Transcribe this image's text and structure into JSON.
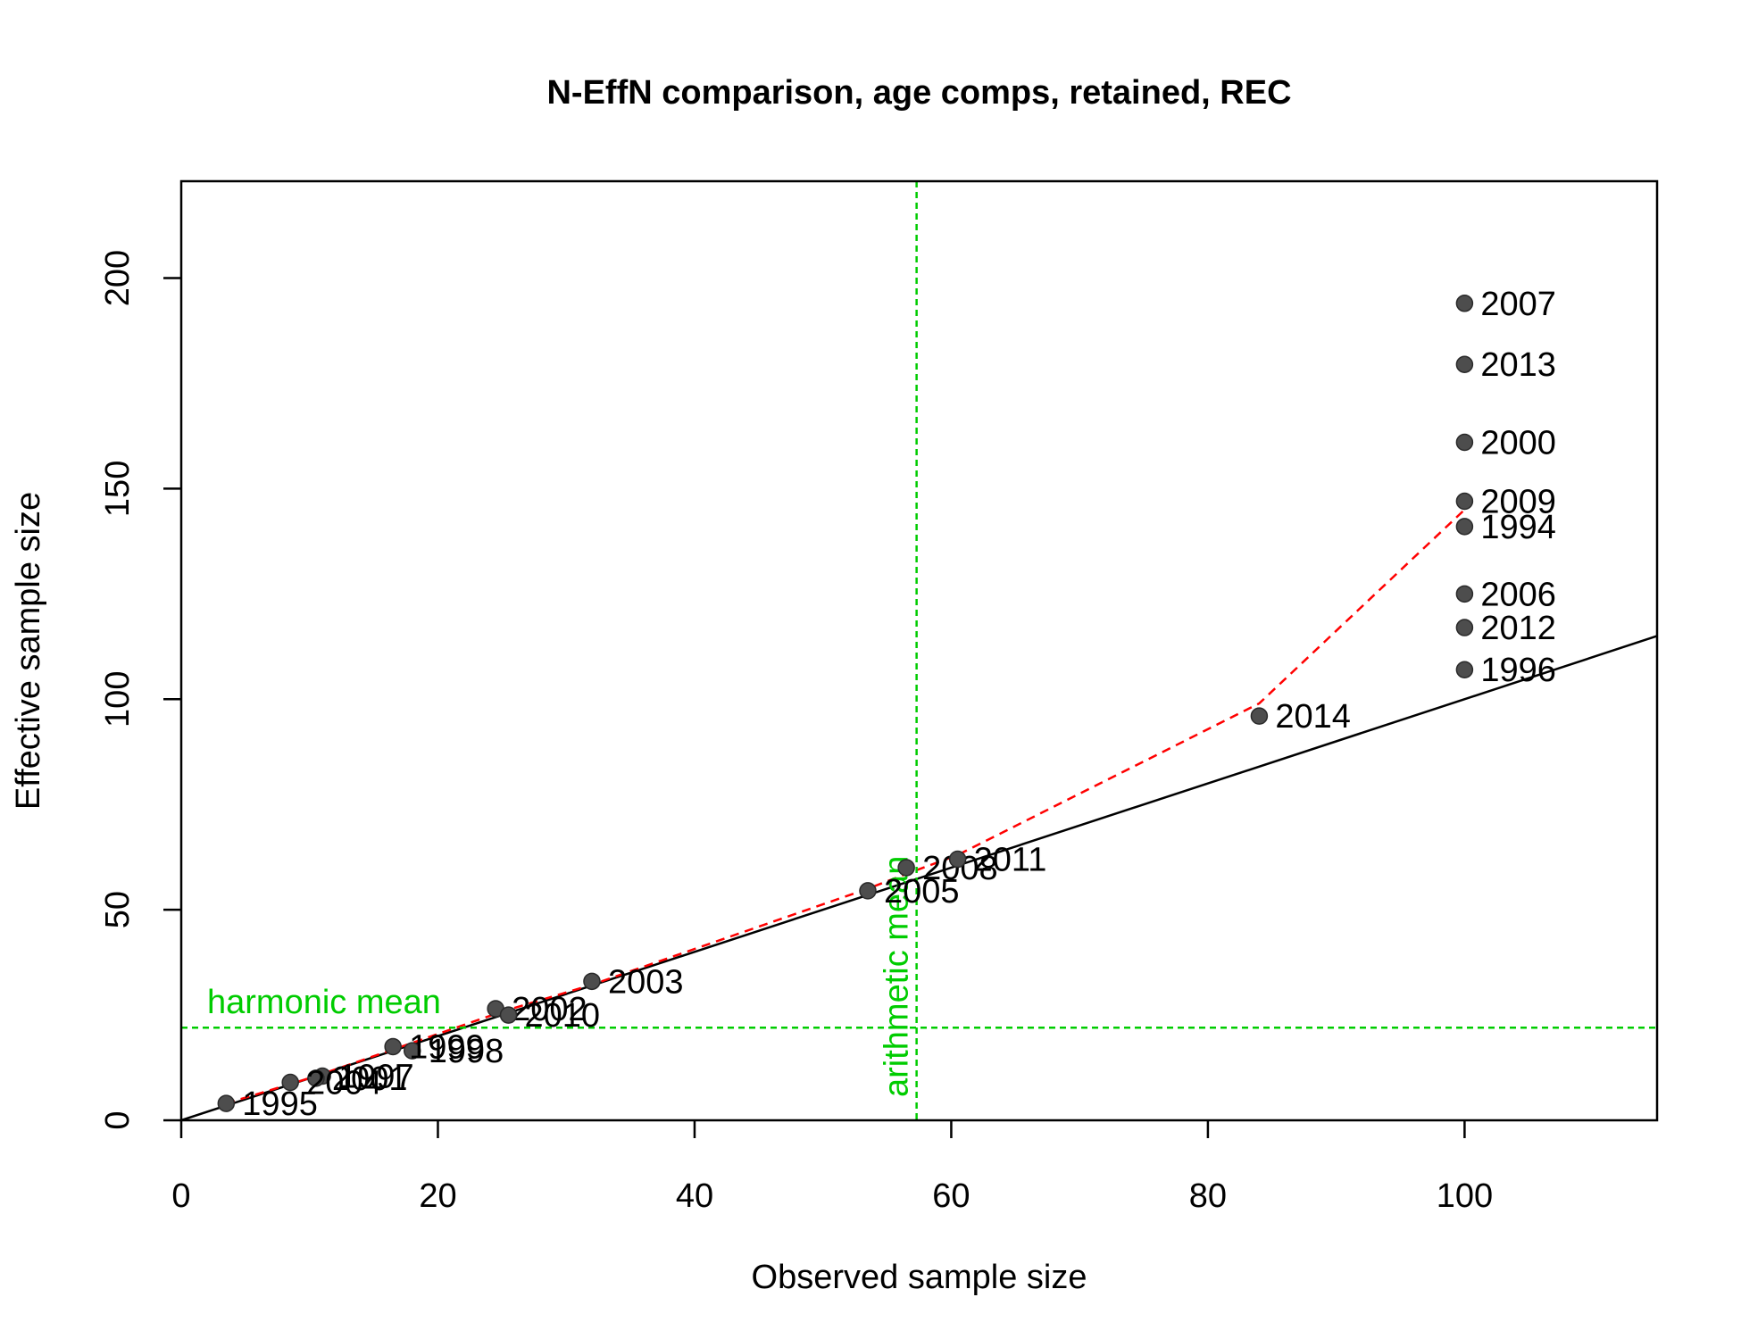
{
  "chart_data": {
    "type": "scatter",
    "title": "N-EffN comparison, age comps, retained, REC",
    "xlabel": "Observed sample size",
    "ylabel": "Effective sample size",
    "xlim": [
      0,
      115
    ],
    "ylim": [
      0,
      223
    ],
    "x_ticks": [
      0,
      20,
      40,
      60,
      80,
      100
    ],
    "y_ticks": [
      0,
      50,
      100,
      150,
      200
    ],
    "grid": false,
    "points": [
      {
        "label": "1994",
        "x": 100,
        "y": 141
      },
      {
        "label": "1995",
        "x": 3.5,
        "y": 4
      },
      {
        "label": "1996",
        "x": 100,
        "y": 107
      },
      {
        "label": "1997",
        "x": 11,
        "y": 10.5
      },
      {
        "label": "1998",
        "x": 18,
        "y": 16.5
      },
      {
        "label": "1999",
        "x": 16.5,
        "y": 17.5
      },
      {
        "label": "2000",
        "x": 100,
        "y": 161
      },
      {
        "label": "2001",
        "x": 10.5,
        "y": 10
      },
      {
        "label": "2002",
        "x": 24.5,
        "y": 26.5
      },
      {
        "label": "2003",
        "x": 32,
        "y": 33
      },
      {
        "label": "2004",
        "x": 8.5,
        "y": 9
      },
      {
        "label": "2005",
        "x": 53.5,
        "y": 54.5
      },
      {
        "label": "2006",
        "x": 100,
        "y": 125
      },
      {
        "label": "2007",
        "x": 100,
        "y": 194
      },
      {
        "label": "2008",
        "x": 56.5,
        "y": 60
      },
      {
        "label": "2009",
        "x": 100,
        "y": 147
      },
      {
        "label": "2010",
        "x": 25.5,
        "y": 25
      },
      {
        "label": "2011",
        "x": 60.5,
        "y": 62
      },
      {
        "label": "2012",
        "x": 100,
        "y": 117
      },
      {
        "label": "2013",
        "x": 100,
        "y": 179.5
      },
      {
        "label": "2014",
        "x": 84,
        "y": 96
      }
    ],
    "one_to_one_line": {
      "from": [
        0,
        0
      ],
      "to": [
        115,
        115
      ],
      "color": "#000000"
    },
    "smoother": {
      "color": "#ff0000",
      "dashed": true,
      "x": [
        3.5,
        8.5,
        10.5,
        16.5,
        25,
        32,
        53.5,
        56.5,
        60.5,
        84,
        100
      ],
      "y": [
        4,
        8.6,
        10.5,
        16.8,
        25.8,
        32.2,
        55,
        58.5,
        63,
        99,
        145
      ]
    },
    "harmonic_mean": {
      "label": "harmonic mean",
      "value": 22,
      "color": "#00cc00"
    },
    "arithmetic_mean": {
      "label": "arithmetic mean",
      "value": 57.3,
      "color": "#00cc00"
    },
    "point_color": "#4d4d4d"
  }
}
